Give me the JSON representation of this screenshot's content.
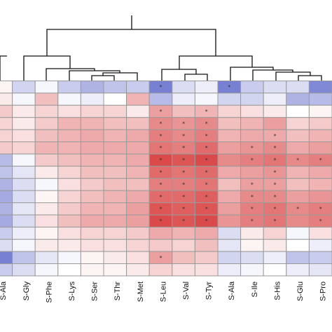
{
  "chart_data": {
    "type": "heatmap",
    "columns": [
      "S-Ala",
      "S-Gly",
      "S-Phe",
      "S-Lys",
      "S-Ser",
      "S-Thr",
      "S-Met",
      "S-Leu",
      "S-Val",
      "S-Tyr",
      "S-Ala",
      "S-Ile",
      "S-His",
      "S-Glu",
      "S-Pro"
    ],
    "scale": {
      "min": -1,
      "max": 1,
      "low_color": "#4a56c4",
      "mid_color": "#ffffff",
      "high_color": "#d42a2a"
    },
    "values": [
      [
        0.05,
        -0.25,
        -0.05,
        -0.3,
        -0.45,
        -0.35,
        -0.3,
        -0.75,
        -0.2,
        -0.1,
        -0.75,
        -0.3,
        -0.2,
        -0.2,
        -0.7
      ],
      [
        0.1,
        -0.05,
        0.3,
        -0.05,
        -0.1,
        0.0,
        0.35,
        -0.4,
        -0.1,
        -0.05,
        -0.25,
        -0.25,
        -0.1,
        -0.45,
        -0.4
      ],
      [
        0.25,
        0.1,
        0.2,
        0.15,
        0.2,
        0.2,
        0.1,
        0.45,
        0.3,
        0.35,
        0.2,
        0.15,
        0.1,
        0.0,
        0.05
      ],
      [
        0.2,
        0.1,
        0.25,
        0.35,
        0.35,
        0.3,
        0.3,
        0.55,
        0.5,
        0.55,
        0.3,
        0.35,
        0.45,
        0.2,
        0.25
      ],
      [
        0.2,
        0.15,
        0.3,
        0.35,
        0.4,
        0.35,
        0.4,
        0.6,
        0.55,
        0.6,
        0.35,
        0.4,
        0.4,
        0.3,
        0.35
      ],
      [
        0.25,
        0.2,
        0.35,
        0.35,
        0.4,
        0.4,
        0.4,
        0.65,
        0.6,
        0.7,
        0.45,
        0.5,
        0.55,
        0.4,
        0.45
      ],
      [
        -0.4,
        -0.05,
        0.25,
        0.3,
        0.35,
        0.35,
        0.4,
        0.85,
        0.8,
        0.85,
        0.55,
        0.6,
        0.65,
        0.55,
        0.6
      ],
      [
        -0.35,
        -0.15,
        0.1,
        0.2,
        0.3,
        0.3,
        0.35,
        0.7,
        0.65,
        0.7,
        0.4,
        0.45,
        0.5,
        0.35,
        0.4
      ],
      [
        -0.45,
        -0.2,
        -0.05,
        0.15,
        0.25,
        0.3,
        0.3,
        0.6,
        0.6,
        0.65,
        0.3,
        0.45,
        0.45,
        0.3,
        0.35
      ],
      [
        -0.5,
        -0.2,
        0.05,
        0.2,
        0.3,
        0.35,
        0.4,
        0.7,
        0.7,
        0.75,
        0.4,
        0.55,
        0.55,
        0.45,
        0.5
      ],
      [
        -0.45,
        -0.15,
        0.1,
        0.25,
        0.35,
        0.35,
        0.45,
        0.8,
        0.75,
        0.8,
        0.45,
        0.6,
        0.65,
        0.55,
        0.6
      ],
      [
        -0.5,
        -0.2,
        0.15,
        0.3,
        0.4,
        0.4,
        0.45,
        0.85,
        0.8,
        0.85,
        0.5,
        0.6,
        0.65,
        0.55,
        0.6
      ],
      [
        -0.3,
        -0.1,
        0.05,
        0.15,
        0.2,
        0.2,
        0.25,
        0.4,
        0.35,
        0.4,
        -0.2,
        0.1,
        0.2,
        -0.05,
        0.15
      ],
      [
        -0.2,
        -0.05,
        0.1,
        0.1,
        0.15,
        0.15,
        0.2,
        0.25,
        0.2,
        0.3,
        -0.15,
        0.05,
        0.1,
        0.0,
        -0.1
      ],
      [
        -0.75,
        -0.35,
        -0.15,
        -0.05,
        0.05,
        0.1,
        0.15,
        0.45,
        0.3,
        0.25,
        -0.25,
        -0.2,
        -0.1,
        -0.35,
        -0.3
      ],
      [
        -0.3,
        -0.2,
        -0.05,
        0.0,
        0.05,
        0.05,
        0.1,
        0.2,
        0.15,
        0.15,
        -0.1,
        -0.05,
        0.0,
        -0.1,
        -0.15
      ]
    ],
    "significant": [
      [
        0,
        7
      ],
      [
        0,
        10
      ],
      [
        2,
        7
      ],
      [
        2,
        9
      ],
      [
        3,
        7
      ],
      [
        3,
        8
      ],
      [
        3,
        9
      ],
      [
        4,
        7
      ],
      [
        4,
        8
      ],
      [
        4,
        9
      ],
      [
        4,
        12
      ],
      [
        5,
        7
      ],
      [
        5,
        8
      ],
      [
        5,
        9
      ],
      [
        5,
        11
      ],
      [
        5,
        12
      ],
      [
        6,
        7
      ],
      [
        6,
        8
      ],
      [
        6,
        9
      ],
      [
        6,
        11
      ],
      [
        6,
        12
      ],
      [
        6,
        13
      ],
      [
        6,
        14
      ],
      [
        7,
        7
      ],
      [
        7,
        8
      ],
      [
        7,
        9
      ],
      [
        7,
        12
      ],
      [
        8,
        7
      ],
      [
        8,
        8
      ],
      [
        8,
        9
      ],
      [
        8,
        11
      ],
      [
        8,
        12
      ],
      [
        9,
        7
      ],
      [
        9,
        8
      ],
      [
        9,
        9
      ],
      [
        9,
        11
      ],
      [
        9,
        12
      ],
      [
        10,
        7
      ],
      [
        10,
        8
      ],
      [
        10,
        9
      ],
      [
        10,
        11
      ],
      [
        10,
        12
      ],
      [
        10,
        13
      ],
      [
        10,
        14
      ],
      [
        11,
        7
      ],
      [
        11,
        8
      ],
      [
        11,
        9
      ],
      [
        11,
        11
      ],
      [
        11,
        12
      ],
      [
        11,
        14
      ],
      [
        14,
        7
      ]
    ],
    "significance_symbol": "*",
    "dendrogram": "column clustering tree above the heatmap"
  }
}
